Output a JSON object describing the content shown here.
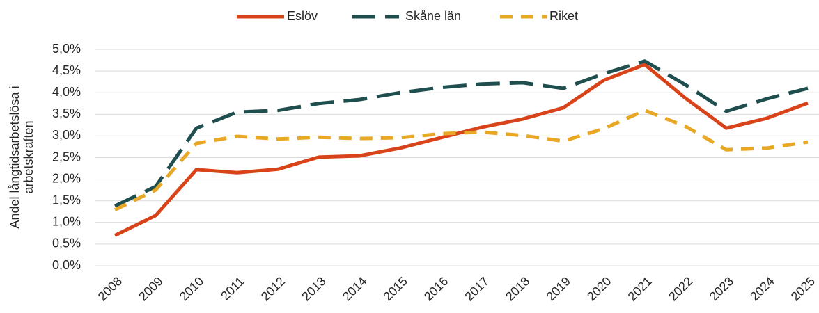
{
  "chart_data": {
    "type": "line",
    "y_label": [
      "Andel långtidsarbetslösa i",
      "arbetskraften"
    ],
    "categories": [
      "2008",
      "2009",
      "2010",
      "2011",
      "2012",
      "2013",
      "2014",
      "2015",
      "2016",
      "2017",
      "2018",
      "2019",
      "2020",
      "2021",
      "2022",
      "2023",
      "2024",
      "2025"
    ],
    "series": [
      {
        "name": "Eslöv",
        "color": "#d9431a",
        "dash": "solid",
        "values": [
          0.7,
          1.16,
          2.22,
          2.15,
          2.23,
          2.51,
          2.54,
          2.72,
          2.96,
          3.2,
          3.39,
          3.65,
          4.29,
          4.65,
          3.87,
          3.18,
          3.41,
          3.76
        ]
      },
      {
        "name": "Skåne län",
        "color": "#1f4e4f",
        "dash": "long-dash",
        "values": [
          1.38,
          1.83,
          3.18,
          3.55,
          3.59,
          3.75,
          3.84,
          4.0,
          4.12,
          4.2,
          4.23,
          4.1,
          4.44,
          4.73,
          4.18,
          3.57,
          3.86,
          4.1
        ]
      },
      {
        "name": "Riket",
        "color": "#e8a826",
        "dash": "dash",
        "values": [
          1.29,
          1.75,
          2.83,
          2.99,
          2.93,
          2.97,
          2.94,
          2.96,
          3.05,
          3.09,
          3.01,
          2.88,
          3.17,
          3.59,
          3.22,
          2.68,
          2.72,
          2.86
        ]
      }
    ],
    "ylim": [
      0,
      5
    ],
    "yticks": [
      {
        "value": 0,
        "label": "0,0%"
      },
      {
        "value": 0.5,
        "label": "0,5%"
      },
      {
        "value": 1,
        "label": "1,0%"
      },
      {
        "value": 1.5,
        "label": "1,5%"
      },
      {
        "value": 2,
        "label": "2,0%"
      },
      {
        "value": 2.5,
        "label": "2,5%"
      },
      {
        "value": 3,
        "label": "3,0%"
      },
      {
        "value": 3.5,
        "label": "3,5%"
      },
      {
        "value": 4,
        "label": "4,0%"
      },
      {
        "value": 4.5,
        "label": "4,5%"
      },
      {
        "value": 5,
        "label": "5,0%"
      }
    ],
    "grid": true,
    "legend": "top"
  }
}
